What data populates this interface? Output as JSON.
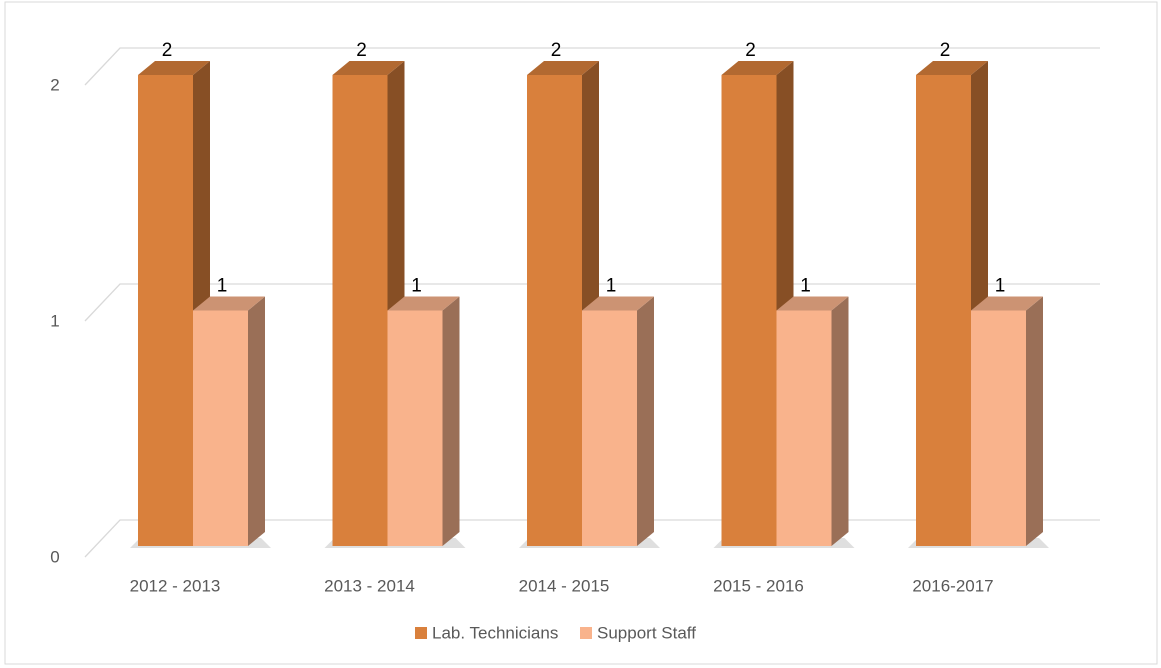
{
  "chart_data": {
    "type": "bar3d",
    "categories": [
      "2012 - 2013",
      "2013 - 2014",
      "2014 - 2015",
      "2015 - 2016",
      "2016-2017"
    ],
    "series": [
      {
        "name": "Lab. Technicians",
        "color": "#d9803c",
        "values": [
          2,
          2,
          2,
          2,
          2
        ]
      },
      {
        "name": "Support Staff",
        "color": "#f9b38c",
        "values": [
          1,
          1,
          1,
          1,
          1
        ]
      }
    ],
    "ylim": [
      0,
      2
    ],
    "yticks": [
      0,
      1,
      2
    ],
    "grid": true,
    "legend": "bottom",
    "data_labels": true
  }
}
